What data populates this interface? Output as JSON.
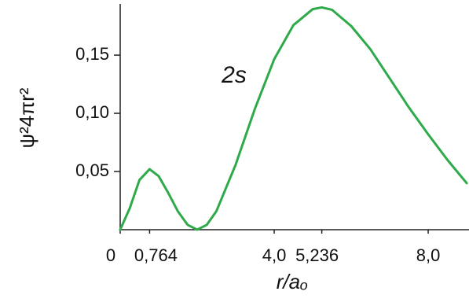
{
  "chart_data": {
    "type": "line",
    "annotation": "2s",
    "x_label": "r/aₒ",
    "y_label": "ψ²4πr²",
    "color": "#2eaa4a",
    "x": [
      0,
      0.25,
      0.5,
      0.764,
      1.0,
      1.25,
      1.5,
      1.75,
      2.0,
      2.25,
      2.5,
      3.0,
      3.5,
      4.0,
      4.5,
      5.0,
      5.236,
      5.5,
      6.0,
      6.5,
      7.0,
      7.5,
      8.0,
      8.5,
      9.0
    ],
    "values": [
      0,
      0.0186,
      0.0427,
      0.052,
      0.046,
      0.0315,
      0.0157,
      0.0042,
      0,
      0.0042,
      0.016,
      0.056,
      0.104,
      0.1465,
      0.1758,
      0.1895,
      0.191,
      0.189,
      0.175,
      0.155,
      0.13,
      0.105,
      0.082,
      0.06,
      0.04
    ],
    "xlim": [
      0,
      9.06
    ],
    "ylim": [
      0,
      0.194
    ],
    "xticks": [
      0,
      {
        "value": 0.764,
        "label": "0,764"
      },
      {
        "value": 4.0,
        "label": "4,0"
      },
      {
        "value": 5.236,
        "label": "5,236"
      },
      {
        "value": 8.0,
        "label": "8,0"
      }
    ],
    "yticks": [
      {
        "value": 0.05,
        "label": "0,05"
      },
      {
        "value": 0.1,
        "label": "0,10"
      },
      {
        "value": 0.15,
        "label": "0,15"
      }
    ]
  }
}
